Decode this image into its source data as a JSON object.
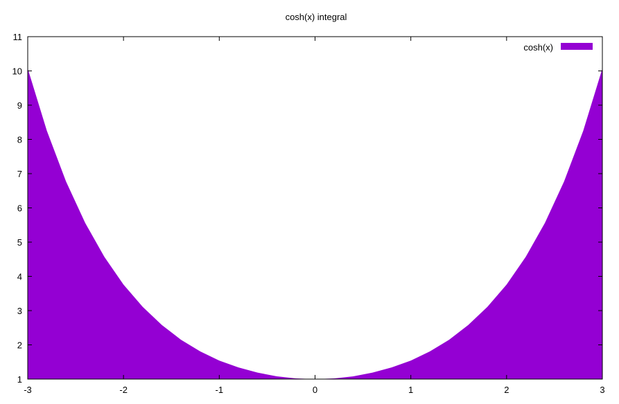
{
  "chart_data": {
    "type": "area",
    "title": "cosh(x) integral",
    "xlabel": "",
    "ylabel": "",
    "xlim": [
      -3,
      3
    ],
    "ylim": [
      1,
      11
    ],
    "xticks": [
      "-3",
      "-2",
      "-1",
      "0",
      "1",
      "2",
      "3"
    ],
    "yticks": [
      "1",
      "2",
      "3",
      "4",
      "5",
      "6",
      "7",
      "8",
      "9",
      "10",
      "11"
    ],
    "grid": false,
    "legend": {
      "placement": "top-right"
    },
    "series": [
      {
        "name": "cosh(x)",
        "color": "#9400D3",
        "x": [
          -3.0,
          -2.8,
          -2.6,
          -2.4,
          -2.2,
          -2.0,
          -1.8,
          -1.6,
          -1.4,
          -1.2,
          -1.0,
          -0.8,
          -0.6,
          -0.4,
          -0.2,
          0.0,
          0.2,
          0.4,
          0.6,
          0.8,
          1.0,
          1.2,
          1.4,
          1.6,
          1.8,
          2.0,
          2.2,
          2.4,
          2.6,
          2.8,
          3.0
        ],
        "y": [
          10.07,
          8.25,
          6.77,
          5.56,
          4.57,
          3.76,
          3.11,
          2.58,
          2.15,
          1.81,
          1.54,
          1.34,
          1.19,
          1.08,
          1.02,
          1.0,
          1.02,
          1.08,
          1.19,
          1.34,
          1.54,
          1.81,
          2.15,
          2.58,
          3.11,
          3.76,
          4.57,
          5.56,
          6.77,
          8.25,
          10.07
        ]
      }
    ]
  }
}
